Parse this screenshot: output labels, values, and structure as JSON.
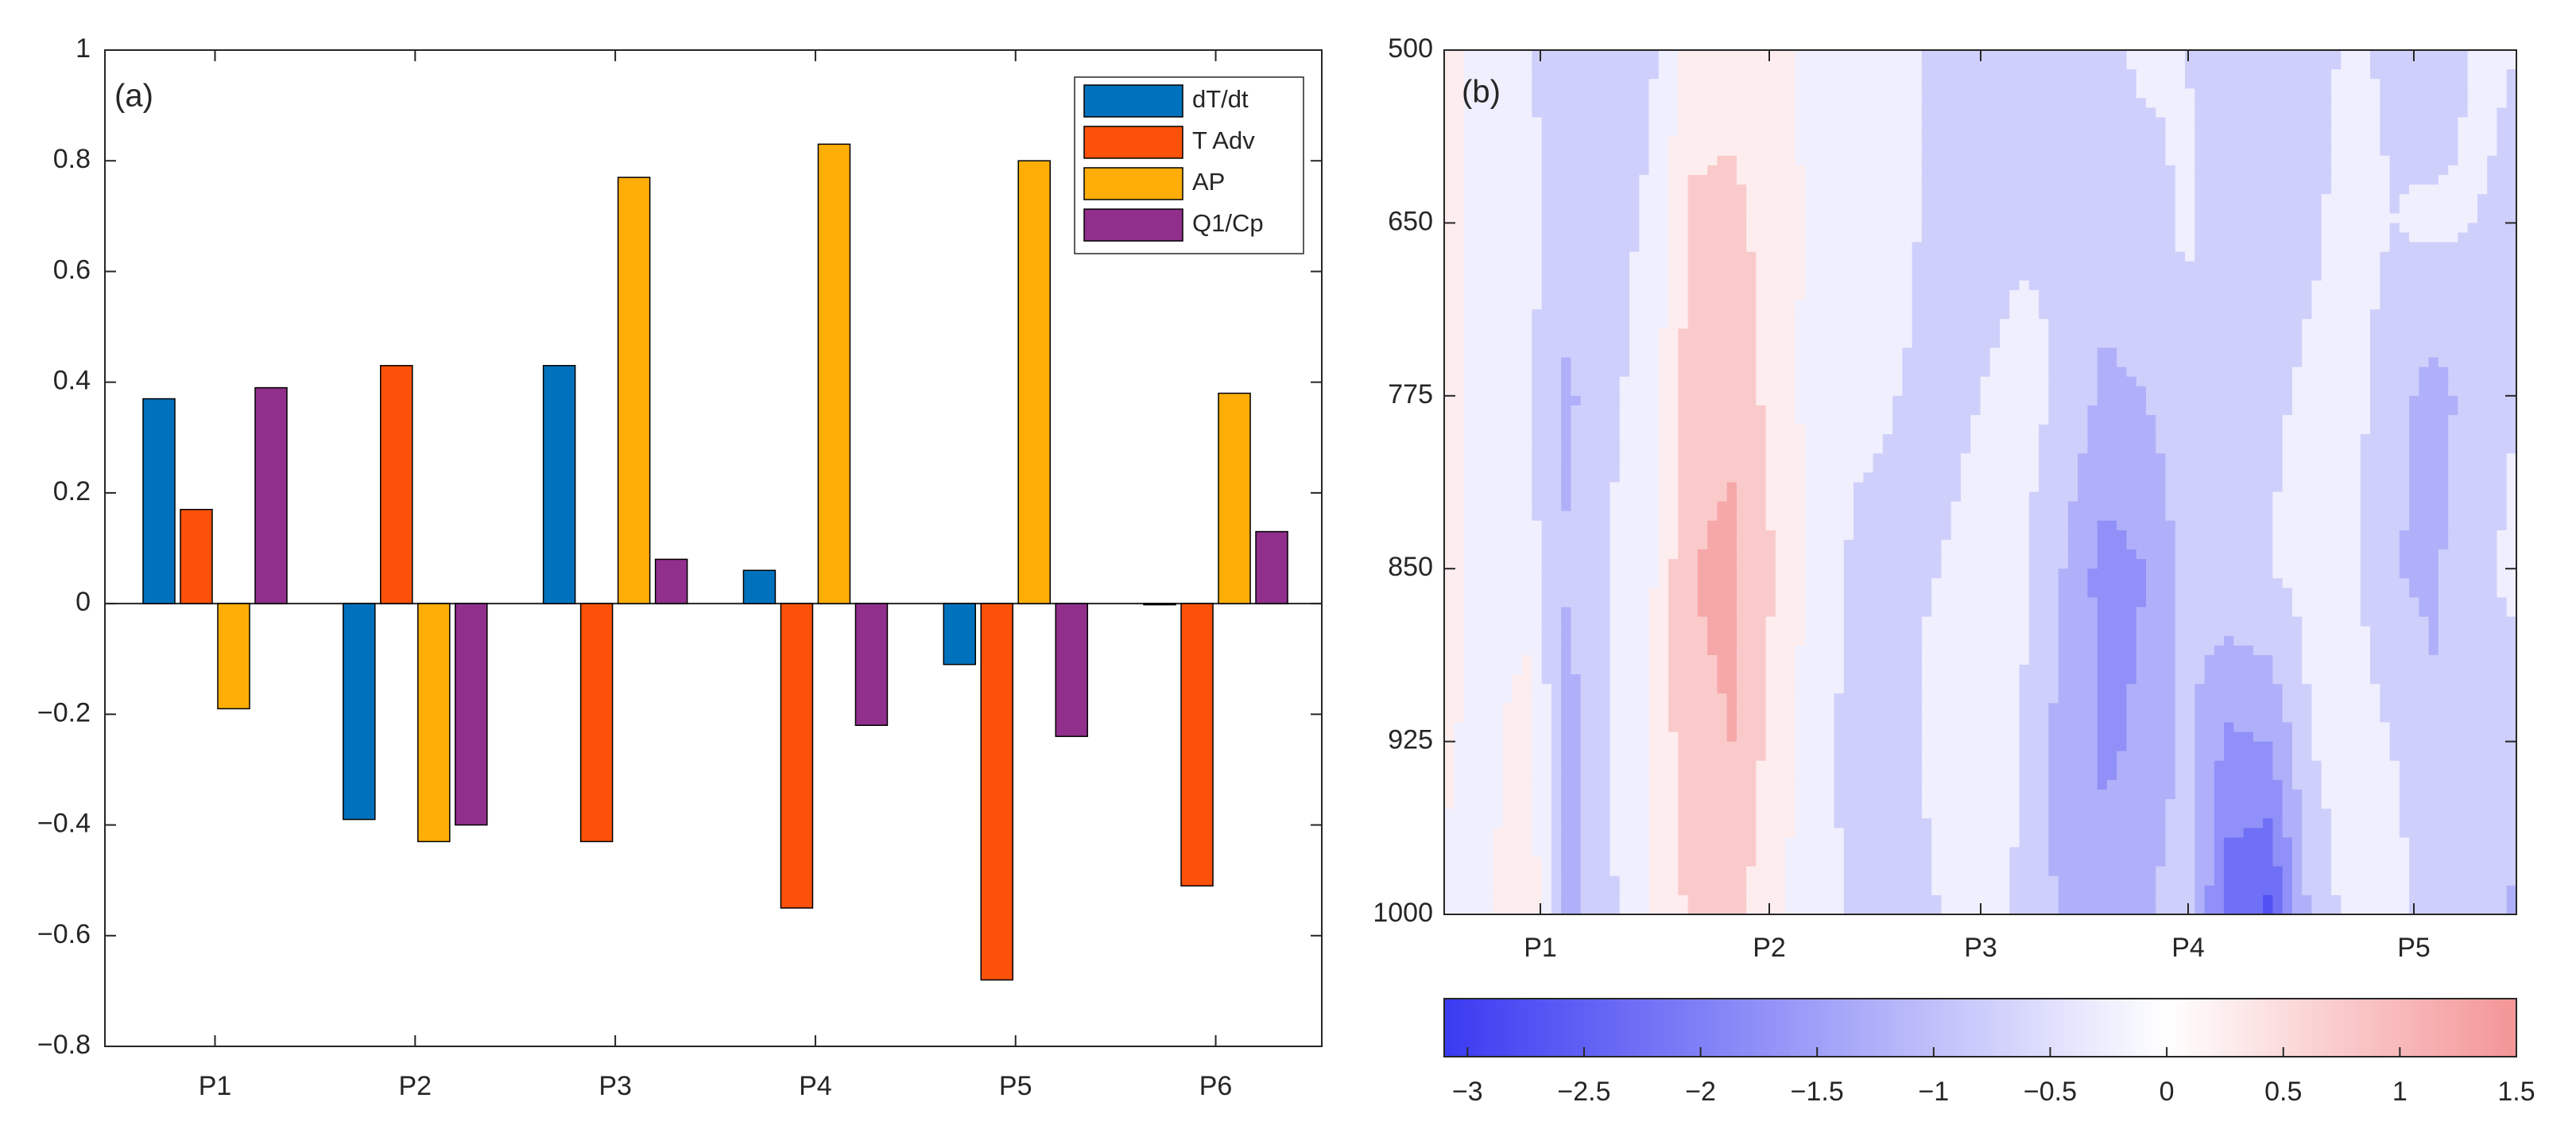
{
  "chart_data": [
    {
      "type": "bar",
      "panel_label": "(a)",
      "categories": [
        "P1",
        "P2",
        "P3",
        "P4",
        "P5",
        "P6"
      ],
      "ylim": [
        -0.8,
        1
      ],
      "yticks": [
        -0.8,
        -0.6,
        -0.4,
        -0.2,
        0,
        0.2,
        0.4,
        0.6,
        0.8,
        1
      ],
      "ytick_labels": [
        "−0.8",
        "−0.6",
        "−0.4",
        "−0.2",
        "0",
        "0.2",
        "0.4",
        "0.6",
        "0.8",
        "1"
      ],
      "legend_position": "top-right",
      "series": [
        {
          "name": "dT/dt",
          "color": "#0072BD",
          "values": [
            0.37,
            -0.39,
            0.43,
            0.06,
            -0.11,
            0.0
          ]
        },
        {
          "name": "T Adv",
          "color": "#FC5109",
          "values": [
            0.17,
            0.43,
            -0.43,
            -0.55,
            -0.68,
            -0.51
          ]
        },
        {
          "name": "AP",
          "color": "#FFAE08",
          "values": [
            -0.19,
            -0.43,
            0.77,
            0.83,
            0.8,
            0.38
          ]
        },
        {
          "name": "Q1/Cp",
          "color": "#912F8D",
          "values": [
            0.39,
            -0.4,
            0.08,
            -0.22,
            -0.24,
            0.13
          ]
        }
      ]
    },
    {
      "type": "heatmap",
      "panel_label": "(b)",
      "xticks": [
        "P1",
        "P2",
        "P3",
        "P4",
        "P5"
      ],
      "yticks": [
        "500",
        "650",
        "775",
        "850",
        "925",
        "1000"
      ],
      "colorbar_ticks": [
        "−3",
        "−2.5",
        "−2",
        "−1.5",
        "−1",
        "−0.5",
        "0",
        "0.5",
        "1",
        "1.5"
      ],
      "colorbar_range": [
        -3.1,
        1.5
      ],
      "colormap": {
        "negative": "#3A3AF2",
        "zero": "#FFFFFF",
        "positive": "#F49597"
      },
      "levels": [
        -3,
        -2.5,
        -2,
        -1.5,
        -1,
        -0.5,
        0,
        0.5,
        1
      ],
      "value_grid": {
        "y_levels": [
          "500",
          "650",
          "775",
          "850",
          "925",
          "1000"
        ],
        "columns": 27,
        "rows": [
          [
            0.4,
            -0.4,
            -0.4,
            -1.0,
            -0.8,
            -0.6,
            0.2,
            0.2,
            0.1,
            -0.1,
            -0.2,
            -0.4,
            -0.6,
            -0.5,
            -0.7,
            -0.9,
            -0.6,
            -0.4,
            -0.5,
            -0.7,
            -0.9,
            -0.7,
            -0.4,
            -0.6,
            -0.8,
            -0.4,
            -0.5
          ],
          [
            0.5,
            -0.4,
            -0.3,
            -0.8,
            -0.7,
            -0.4,
            0.6,
            0.7,
            0.2,
            -0.1,
            -0.3,
            -0.4,
            -0.6,
            -0.7,
            -0.6,
            -0.5,
            -0.8,
            -0.7,
            -0.4,
            -0.9,
            -0.8,
            -0.6,
            -0.3,
            -0.5,
            -0.4,
            -0.5,
            -0.6
          ],
          [
            0.3,
            -0.3,
            -0.4,
            -1.1,
            -0.6,
            -0.3,
            0.8,
            0.9,
            0.3,
            -0.2,
            -0.4,
            -0.5,
            -0.6,
            -0.5,
            -0.3,
            -0.6,
            -1.1,
            -1.0,
            -0.7,
            -0.8,
            -0.6,
            -0.4,
            -0.3,
            -0.8,
            -1.2,
            -0.8,
            -0.5
          ],
          [
            0.2,
            -0.2,
            -0.3,
            -1.0,
            -0.5,
            -0.1,
            1.0,
            1.1,
            0.5,
            -0.2,
            -0.6,
            -0.6,
            -0.5,
            -0.4,
            -0.4,
            -1.0,
            -1.7,
            -1.5,
            -0.8,
            -0.6,
            -0.5,
            -0.3,
            -0.4,
            -1.0,
            -1.1,
            -0.6,
            -0.4
          ],
          [
            0.1,
            -0.2,
            0.3,
            -1.2,
            -0.5,
            0.0,
            0.9,
            1.0,
            0.3,
            -0.3,
            -0.7,
            -0.7,
            -0.3,
            -0.2,
            -0.5,
            -1.2,
            -1.6,
            -1.4,
            -0.9,
            -1.6,
            -1.5,
            -0.5,
            -0.2,
            -0.5,
            -0.9,
            -0.6,
            -0.7
          ],
          [
            -0.1,
            -0.1,
            0.4,
            -1.1,
            -0.6,
            0.0,
            0.6,
            0.7,
            0.1,
            -0.3,
            -0.6,
            -0.8,
            -0.5,
            -0.2,
            -0.6,
            -1.1,
            -1.3,
            -1.1,
            -0.6,
            -2.3,
            -2.6,
            -0.9,
            -0.3,
            -0.3,
            -0.7,
            -0.8,
            -1.1
          ]
        ]
      }
    }
  ]
}
